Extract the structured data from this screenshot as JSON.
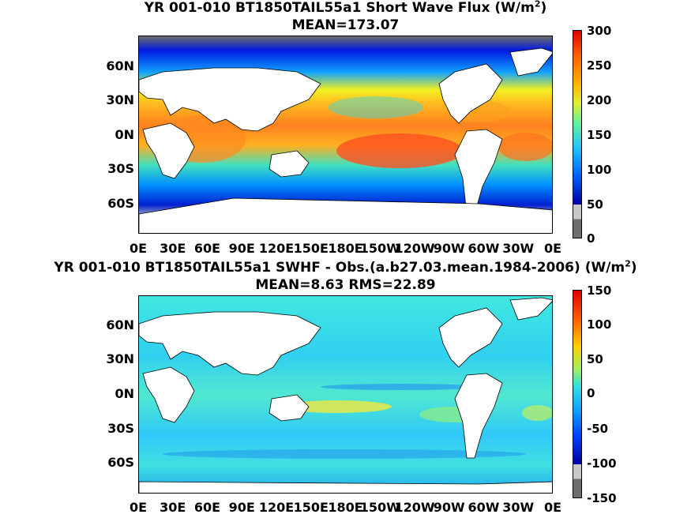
{
  "maps": [
    {
      "title_line1": "YR 001-010 BT1850TAIL55a1  Short Wave Flux (W/m",
      "title_sup": "2",
      "title_close": ")",
      "title_line2": "MEAN=173.07",
      "colorbar_ticks": [
        "300",
        "250",
        "200",
        "150",
        "100",
        "50",
        "0"
      ],
      "variable": "Short Wave Flux",
      "units": "W/m2"
    },
    {
      "title_line1": "YR 001-010 BT1850TAIL55a1 SWHF - Obs.(a.b27.03.mean.1984-2006) (W/m",
      "title_sup": "2",
      "title_close": ")",
      "title_line2": "MEAN=8.63 RMS=22.89",
      "colorbar_ticks": [
        "150",
        "100",
        "50",
        "0",
        "-50",
        "-100",
        "-150"
      ],
      "variable": "SWHF difference",
      "units": "W/m2"
    }
  ],
  "lat_labels": [
    "60N",
    "30N",
    "0N",
    "30S",
    "60S"
  ],
  "lon_labels": [
    "0E",
    "30E",
    "60E",
    "90E",
    "120E",
    "150E",
    "180E",
    "150W",
    "120W",
    "90W",
    "60W",
    "30W",
    "0E"
  ],
  "colors": {
    "land": "#ffffff",
    "ice_dark": "#6e6e6e",
    "ice_light": "#c8c8c8",
    "jet_low": "#0000c0",
    "jet_mid": "#40e0d0",
    "jet_high": "#ff2000"
  }
}
